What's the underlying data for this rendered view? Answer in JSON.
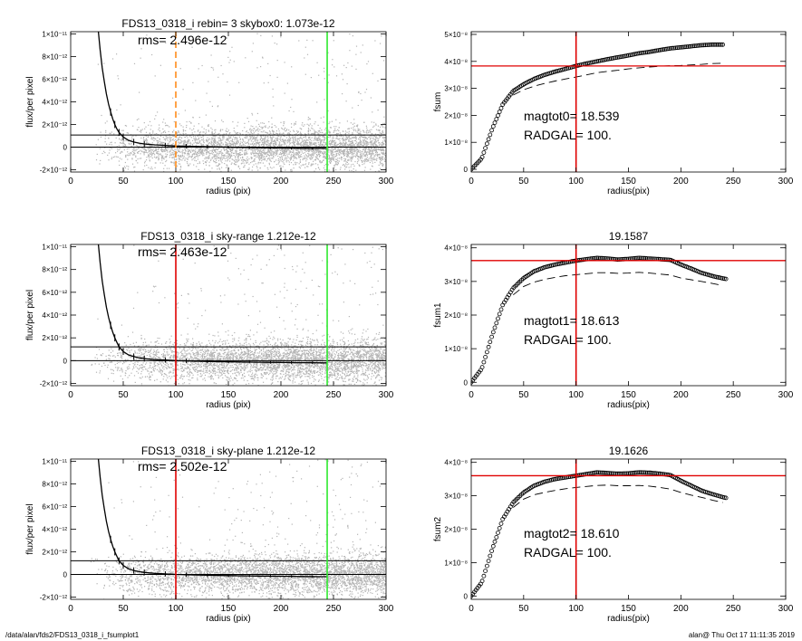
{
  "footer": {
    "path": "/data/alan/fds2/FDS13_0318_i_fsumplot1",
    "stamp": "alan@  Thu Oct 17 11:11:35 2019"
  },
  "colors": {
    "scatter": "#b4b4b4",
    "orange": "#ff8c1a",
    "red": "#e00000",
    "green": "#2ee82e",
    "black": "#000000"
  },
  "chart_data": [
    {
      "type": "scatter",
      "title": "FDS13_0318_i rebin= 3    skybox0:  1.073e-12",
      "annotation": "rms= 2.496e-12",
      "xlabel": "radius (pix)",
      "ylabel": "flux/per pixel",
      "xlim": [
        0,
        300
      ],
      "ylim": [
        -2.2e-12,
        1.02e-11
      ],
      "xticks": [
        0,
        50,
        100,
        150,
        200,
        250,
        300
      ],
      "xtick_labels": [
        "0",
        "50",
        "100",
        "150",
        "200",
        "250",
        "300"
      ],
      "yticks": [
        -2e-12,
        0,
        2e-12,
        4e-12,
        6e-12,
        8e-12,
        1e-11
      ],
      "ytick_labels": [
        "-2×10⁻¹²",
        "0",
        "2×10⁻¹²",
        "4×10⁻¹²",
        "6×10⁻¹²",
        "8×10⁻¹²",
        "1×10⁻¹¹"
      ],
      "hlines": [
        {
          "y": 0,
          "color": "#000000"
        },
        {
          "y": 1.073e-12,
          "color": "#000000"
        }
      ],
      "vlines": [
        {
          "x": 100,
          "color": "#ff8c1a",
          "style": "dashed"
        },
        {
          "x": 244,
          "color": "#2ee82e",
          "style": "solid"
        }
      ],
      "profile": {
        "x": [
          26,
          28,
          30,
          32,
          34,
          36,
          38,
          40,
          42,
          44,
          46,
          48,
          50,
          55,
          60,
          65,
          70,
          80,
          90,
          100,
          110,
          120,
          130,
          140,
          150,
          160,
          170,
          180,
          190,
          200,
          210,
          220,
          230,
          240,
          244
        ],
        "y": [
          1.05e-11,
          8.6e-12,
          7e-12,
          5.8e-12,
          4.7e-12,
          3.8e-12,
          3.1e-12,
          2.5e-12,
          2e-12,
          1.6e-12,
          1.3e-12,
          1.1e-12,
          9e-13,
          6e-13,
          4.5e-13,
          3.5e-13,
          2.8e-13,
          2e-13,
          1.5e-13,
          1e-13,
          8e-14,
          6e-14,
          4e-14,
          2e-14,
          0,
          -2e-14,
          -4e-14,
          -5e-14,
          -6e-14,
          -8e-14,
          -9e-14,
          -1e-13,
          -1.1e-13,
          -1.2e-13,
          -1.2e-13
        ]
      }
    },
    {
      "type": "line",
      "title": "",
      "annotation": [
        "magtot0=  18.539",
        "RADGAL=    100."
      ],
      "xlabel": "radius(pix)",
      "ylabel": "fsum",
      "xlim": [
        0,
        300
      ],
      "ylim": [
        -1e-09,
        5.1e-08
      ],
      "xticks": [
        0,
        50,
        100,
        150,
        200,
        250,
        300
      ],
      "xtick_labels": [
        "0",
        "50",
        "100",
        "150",
        "200",
        "250",
        "300"
      ],
      "yticks": [
        0,
        1e-08,
        2e-08,
        3e-08,
        4e-08,
        5e-08
      ],
      "ytick_labels": [
        "0",
        "1×10⁻⁸",
        "2×10⁻⁸",
        "3×10⁻⁸",
        "4×10⁻⁸",
        "5×10⁻⁸"
      ],
      "hlines": [
        {
          "y": 3.83e-08,
          "color": "#e00000"
        }
      ],
      "vlines": [
        {
          "x": 100,
          "color": "#e00000",
          "style": "solid"
        }
      ],
      "series": [
        {
          "style": "circles",
          "x": [
            0,
            10,
            20,
            30,
            40,
            50,
            60,
            70,
            80,
            90,
            100,
            110,
            120,
            130,
            140,
            150,
            160,
            170,
            180,
            190,
            200,
            210,
            220,
            230,
            240
          ],
          "y": [
            0,
            4e-09,
            1.5e-08,
            2.4e-08,
            2.9e-08,
            3.15e-08,
            3.35e-08,
            3.5e-08,
            3.62e-08,
            3.72e-08,
            3.83e-08,
            3.92e-08,
            4e-08,
            4.08e-08,
            4.15e-08,
            4.22e-08,
            4.3e-08,
            4.35e-08,
            4.42e-08,
            4.48e-08,
            4.52e-08,
            4.56e-08,
            4.6e-08,
            4.62e-08,
            4.62e-08
          ]
        },
        {
          "style": "dashed",
          "x": [
            40,
            50,
            60,
            70,
            80,
            90,
            100,
            110,
            120,
            130,
            140,
            150,
            160,
            170,
            180,
            190,
            200,
            210,
            220,
            230,
            240
          ],
          "y": [
            2.75e-08,
            2.95e-08,
            3.08e-08,
            3.18e-08,
            3.27e-08,
            3.35e-08,
            3.42e-08,
            3.5e-08,
            3.58e-08,
            3.63e-08,
            3.67e-08,
            3.72e-08,
            3.76e-08,
            3.79e-08,
            3.82e-08,
            3.84e-08,
            3.85e-08,
            3.87e-08,
            3.89e-08,
            3.92e-08,
            3.93e-08
          ]
        }
      ]
    },
    {
      "type": "scatter",
      "title": "FDS13_0318_i sky-range  1.212e-12",
      "annotation": "rms= 2.463e-12",
      "xlabel": "radius (pix)",
      "ylabel": "flux/per pixel",
      "xlim": [
        0,
        300
      ],
      "ylim": [
        -2.2e-12,
        1.02e-11
      ],
      "xticks": [
        0,
        50,
        100,
        150,
        200,
        250,
        300
      ],
      "xtick_labels": [
        "0",
        "50",
        "100",
        "150",
        "200",
        "250",
        "300"
      ],
      "yticks": [
        -2e-12,
        0,
        2e-12,
        4e-12,
        6e-12,
        8e-12,
        1e-11
      ],
      "ytick_labels": [
        "-2×10⁻¹²",
        "0",
        "2×10⁻¹²",
        "4×10⁻¹²",
        "6×10⁻¹²",
        "8×10⁻¹²",
        "1×10⁻¹¹"
      ],
      "hlines": [
        {
          "y": 0,
          "color": "#000000"
        },
        {
          "y": 1.212e-12,
          "color": "#000000"
        }
      ],
      "vlines": [
        {
          "x": 100,
          "color": "#e00000",
          "style": "solid"
        },
        {
          "x": 244,
          "color": "#2ee82e",
          "style": "solid"
        }
      ],
      "profile": {
        "x": [
          26,
          28,
          30,
          32,
          34,
          36,
          38,
          40,
          42,
          44,
          46,
          48,
          50,
          55,
          60,
          65,
          70,
          80,
          90,
          100,
          110,
          120,
          130,
          140,
          150,
          160,
          170,
          180,
          190,
          200,
          210,
          220,
          230,
          240,
          244
        ],
        "y": [
          1.05e-11,
          8.6e-12,
          7e-12,
          5.8e-12,
          4.7e-12,
          3.8e-12,
          3.1e-12,
          2.5e-12,
          2e-12,
          1.6e-12,
          1.2e-12,
          1e-12,
          8e-13,
          5e-13,
          3.5e-13,
          2.5e-13,
          1.8e-13,
          1e-13,
          5e-14,
          0,
          -2e-14,
          -5e-14,
          -7e-14,
          -9e-14,
          -1e-13,
          -1.2e-13,
          -1.3e-13,
          -1.4e-13,
          -1.5e-13,
          -1.6e-13,
          -1.7e-13,
          -1.8e-13,
          -1.9e-13,
          -2e-13,
          -2e-13
        ]
      }
    },
    {
      "type": "line",
      "title": "19.1587",
      "annotation": [
        "magtot1=  18.613",
        "RADGAL=    100."
      ],
      "xlabel": "radius(pix)",
      "ylabel": "fsum1",
      "xlim": [
        0,
        300
      ],
      "ylim": [
        -1e-09,
        4.1e-08
      ],
      "xticks": [
        0,
        50,
        100,
        150,
        200,
        250,
        300
      ],
      "xtick_labels": [
        "0",
        "50",
        "100",
        "150",
        "200",
        "250",
        "300"
      ],
      "yticks": [
        0,
        1e-08,
        2e-08,
        3e-08,
        4e-08
      ],
      "ytick_labels": [
        "0",
        "1×10⁻⁸",
        "2×10⁻⁸",
        "3×10⁻⁸",
        "4×10⁻⁸"
      ],
      "hlines": [
        {
          "y": 3.62e-08,
          "color": "#e00000"
        }
      ],
      "vlines": [
        {
          "x": 100,
          "color": "#e00000",
          "style": "solid"
        }
      ],
      "series": [
        {
          "style": "circles",
          "x": [
            0,
            10,
            20,
            30,
            40,
            50,
            60,
            70,
            80,
            90,
            100,
            110,
            120,
            130,
            140,
            150,
            160,
            170,
            180,
            190,
            200,
            210,
            220,
            230,
            240,
            244
          ],
          "y": [
            0,
            4e-09,
            1.4e-08,
            2.3e-08,
            2.8e-08,
            3.1e-08,
            3.3e-08,
            3.42e-08,
            3.5e-08,
            3.56e-08,
            3.62e-08,
            3.66e-08,
            3.7e-08,
            3.68e-08,
            3.65e-08,
            3.67e-08,
            3.7e-08,
            3.68e-08,
            3.66e-08,
            3.64e-08,
            3.5e-08,
            3.38e-08,
            3.25e-08,
            3.16e-08,
            3.09e-08,
            3.07e-08
          ]
        },
        {
          "style": "dashed",
          "x": [
            40,
            50,
            60,
            70,
            80,
            90,
            100,
            110,
            120,
            130,
            140,
            150,
            160,
            170,
            180,
            190,
            200,
            210,
            220,
            230,
            240
          ],
          "y": [
            2.6e-08,
            2.85e-08,
            2.98e-08,
            3.06e-08,
            3.12e-08,
            3.17e-08,
            3.2e-08,
            3.23e-08,
            3.26e-08,
            3.26e-08,
            3.24e-08,
            3.25e-08,
            3.27e-08,
            3.25e-08,
            3.22e-08,
            3.19e-08,
            3.1e-08,
            3.05e-08,
            3e-08,
            2.94e-08,
            2.88e-08
          ]
        }
      ]
    },
    {
      "type": "scatter",
      "title": "FDS13_0318_i sky-plane  1.212e-12",
      "annotation": "rms= 2.502e-12",
      "xlabel": "radius (pix)",
      "ylabel": "flux/per pixel",
      "xlim": [
        0,
        300
      ],
      "ylim": [
        -2.2e-12,
        1.02e-11
      ],
      "xticks": [
        0,
        50,
        100,
        150,
        200,
        250,
        300
      ],
      "xtick_labels": [
        "0",
        "50",
        "100",
        "150",
        "200",
        "250",
        "300"
      ],
      "yticks": [
        -2e-12,
        0,
        2e-12,
        4e-12,
        6e-12,
        8e-12,
        1e-11
      ],
      "ytick_labels": [
        "-2×10⁻¹²",
        "0",
        "2×10⁻¹²",
        "4×10⁻¹²",
        "6×10⁻¹²",
        "8×10⁻¹²",
        "1×10⁻¹¹"
      ],
      "hlines": [
        {
          "y": 0,
          "color": "#000000"
        },
        {
          "y": 1.212e-12,
          "color": "#000000"
        }
      ],
      "vlines": [
        {
          "x": 100,
          "color": "#e00000",
          "style": "solid"
        },
        {
          "x": 244,
          "color": "#2ee82e",
          "style": "solid"
        }
      ],
      "profile": {
        "x": [
          26,
          28,
          30,
          32,
          34,
          36,
          38,
          40,
          42,
          44,
          46,
          48,
          50,
          55,
          60,
          65,
          70,
          80,
          90,
          100,
          110,
          120,
          130,
          140,
          150,
          160,
          170,
          180,
          190,
          200,
          210,
          220,
          230,
          240,
          244
        ],
        "y": [
          1.05e-11,
          8.6e-12,
          7e-12,
          5.8e-12,
          4.7e-12,
          3.8e-12,
          3.1e-12,
          2.5e-12,
          2e-12,
          1.6e-12,
          1.2e-12,
          1e-12,
          8e-13,
          5e-13,
          3.5e-13,
          2.5e-13,
          1.8e-13,
          1e-13,
          5e-14,
          0,
          -2e-14,
          -5e-14,
          -7e-14,
          -9e-14,
          -1e-13,
          -1.2e-13,
          -1.3e-13,
          -1.4e-13,
          -1.5e-13,
          -1.6e-13,
          -1.7e-13,
          -1.8e-13,
          -1.9e-13,
          -2e-13,
          -2e-13
        ]
      }
    },
    {
      "type": "line",
      "title": "19.1626",
      "annotation": [
        "magtot2=  18.610",
        "RADGAL=    100."
      ],
      "xlabel": "radius(pix)",
      "ylabel": "fsum2",
      "xlim": [
        0,
        300
      ],
      "ylim": [
        -1e-09,
        4.1e-08
      ],
      "xticks": [
        0,
        50,
        100,
        150,
        200,
        250,
        300
      ],
      "xtick_labels": [
        "0",
        "50",
        "100",
        "150",
        "200",
        "250",
        "300"
      ],
      "yticks": [
        0,
        1e-08,
        2e-08,
        3e-08,
        4e-08
      ],
      "ytick_labels": [
        "0",
        "1×10⁻⁸",
        "2×10⁻⁸",
        "3×10⁻⁸",
        "4×10⁻⁸"
      ],
      "hlines": [
        {
          "y": 3.6e-08,
          "color": "#e00000"
        }
      ],
      "vlines": [
        {
          "x": 100,
          "color": "#e00000",
          "style": "solid"
        }
      ],
      "series": [
        {
          "style": "circles",
          "x": [
            0,
            10,
            20,
            30,
            40,
            50,
            60,
            70,
            80,
            90,
            100,
            110,
            120,
            130,
            140,
            150,
            160,
            170,
            180,
            190,
            200,
            210,
            220,
            230,
            240,
            244
          ],
          "y": [
            0,
            4e-09,
            1.4e-08,
            2.3e-08,
            2.8e-08,
            3.1e-08,
            3.3e-08,
            3.42e-08,
            3.5e-08,
            3.55e-08,
            3.6e-08,
            3.65e-08,
            3.7e-08,
            3.68e-08,
            3.66e-08,
            3.67e-08,
            3.7e-08,
            3.69e-08,
            3.66e-08,
            3.62e-08,
            3.45e-08,
            3.3e-08,
            3.15e-08,
            3.05e-08,
            2.96e-08,
            2.93e-08
          ]
        },
        {
          "style": "dashed",
          "x": [
            40,
            50,
            60,
            70,
            80,
            90,
            100,
            110,
            120,
            130,
            140,
            150,
            160,
            170,
            180,
            190,
            200,
            210,
            220,
            230,
            240
          ],
          "y": [
            2.65e-08,
            2.9e-08,
            3.03e-08,
            3.1e-08,
            3.16e-08,
            3.21e-08,
            3.25e-08,
            3.28e-08,
            3.31e-08,
            3.32e-08,
            3.3e-08,
            3.3e-08,
            3.31e-08,
            3.29e-08,
            3.25e-08,
            3.2e-08,
            3.1e-08,
            3.02e-08,
            2.95e-08,
            2.87e-08,
            2.8e-08
          ]
        }
      ]
    }
  ]
}
